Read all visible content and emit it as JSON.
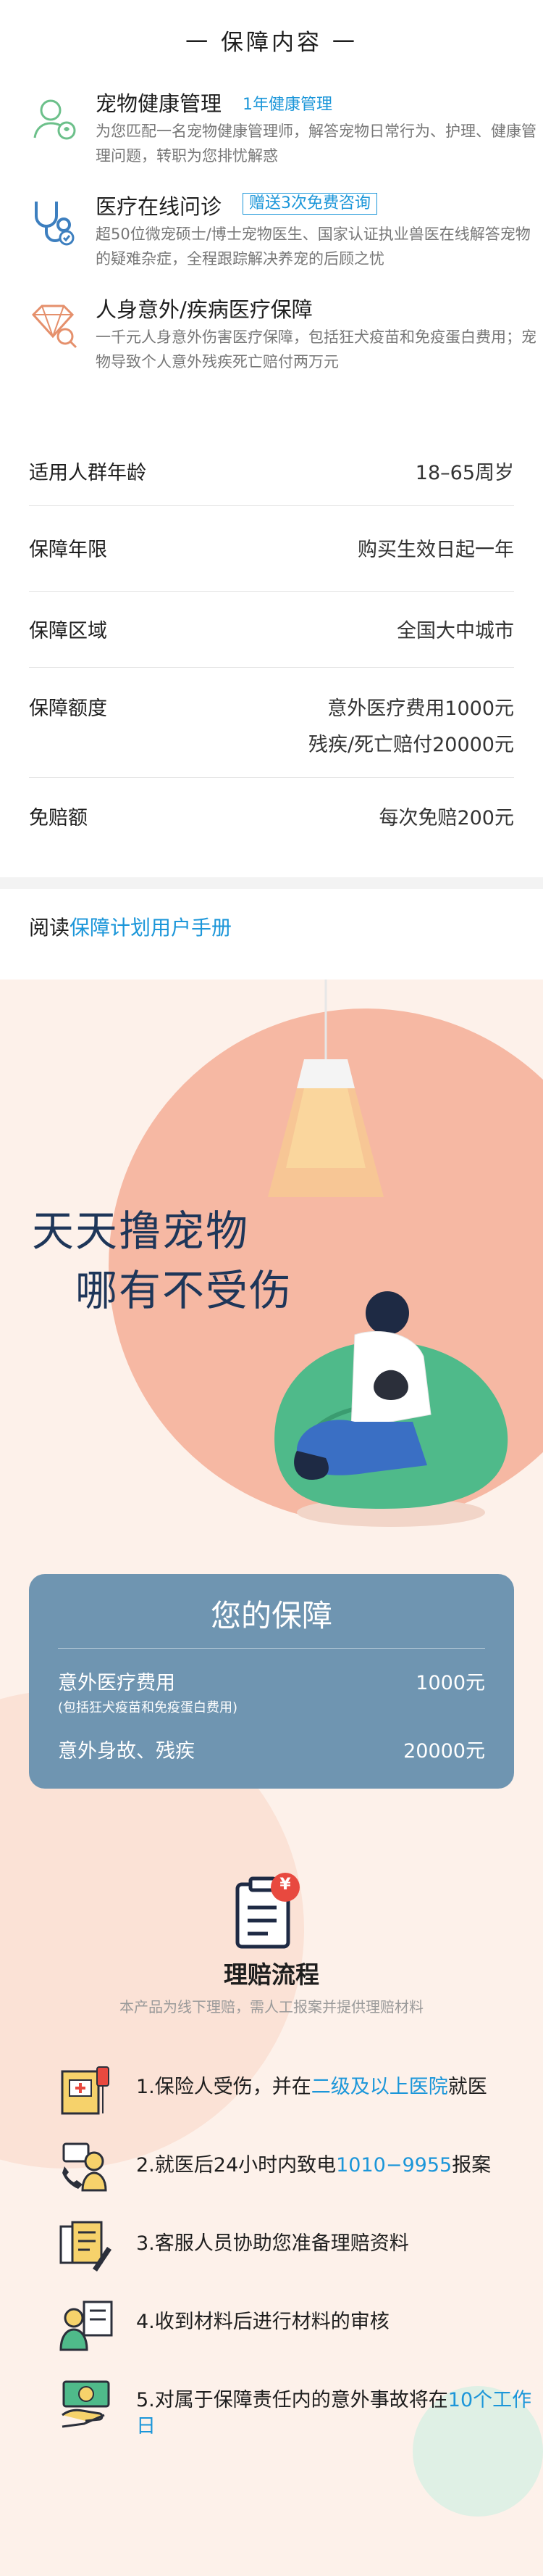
{
  "section_title": "一 保障内容 一",
  "features": [
    {
      "name": "宠物健康管理",
      "tag": "1年健康管理",
      "desc": "为您匹配一名宠物健康管理师，解答宠物日常行为、护理、健康管理问题，转职为您排忧解惑",
      "icon": "pet-health-icon"
    },
    {
      "name": "医疗在线问诊",
      "tag": "赠送3次免费咨询",
      "desc": "超50位微宠硕士/博士宠物医生、国家认证执业兽医在线解答宠物的疑难杂症，全程跟踪解决养宠的后顾之忧",
      "icon": "stethoscope-icon"
    },
    {
      "name": "人身意外/疾病医疗保障",
      "tag": "",
      "desc": "一千元人身意外伤害医疗保障，包括狂犬疫苗和免疫蛋白费用；宠物导致个人意外残疾死亡赔付两万元",
      "icon": "diamond-icon"
    }
  ],
  "details": {
    "age": {
      "label": "适用人群年龄",
      "value": "18–65周岁"
    },
    "period": {
      "label": "保障年限",
      "value": "购买生效日起一年"
    },
    "area": {
      "label": "保障区域",
      "value": "全国大中城市"
    },
    "amount": {
      "label": "保障额度",
      "value1": "意外医疗费用1000元",
      "value2": "残疾/死亡赔付20000元"
    },
    "deductible": {
      "label": "免赔额",
      "value": "每次免赔200元"
    }
  },
  "read": {
    "prefix": "阅读",
    "link": "保障计划用户手册"
  },
  "hero": {
    "line1": "天天撸宠物",
    "line2": "哪有不受伤"
  },
  "guarantee": {
    "title": "您的保障",
    "item1_label": "意外医疗费用",
    "item1_sub": "(包括狂犬疫苗和免疫蛋白费用)",
    "item1_value": "1000元",
    "item2_label": "意外身故、残疾",
    "item2_value": "20000元"
  },
  "claim": {
    "badge": "¥",
    "title": "理赔流程",
    "subtitle": "本产品为线下理赔，需人工报案并提供理赔材料",
    "steps": [
      {
        "a": "1.保险人受伤，并在",
        "b": "二级及以上医院",
        "c": "就医",
        "icon": "hospital-icon"
      },
      {
        "a": "2.就医后24小时内致电",
        "b": "1010−9955",
        "c": "报案",
        "icon": "phone-call-icon"
      },
      {
        "a": "3.客服人员协助您准备理赔资料",
        "b": "",
        "c": "",
        "icon": "documents-icon"
      },
      {
        "a": "4.收到材料后进行材料的审核",
        "b": "",
        "c": "",
        "icon": "reviewer-icon"
      },
      {
        "a": "5.对属于保障责任内的意外事故将在",
        "b": "10个工作日",
        "c": "",
        "icon": "payout-icon"
      }
    ]
  },
  "colors": {
    "accent": "#1b96d9",
    "guarantee_bg": "#6f95b1",
    "hero_bg": "#fdf1ea",
    "circle": "#f6b8a3",
    "pillow": "#4fba8a"
  }
}
